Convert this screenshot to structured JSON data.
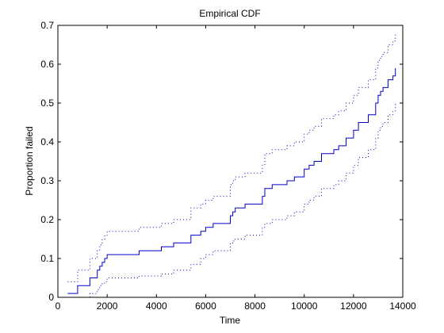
{
  "chart_data": {
    "type": "line",
    "title": "Empirical CDF",
    "xlabel": "Time",
    "ylabel": "Proportion failed",
    "xlim": [
      0,
      14000
    ],
    "ylim": [
      0,
      0.7
    ],
    "grid": false,
    "legend": "none",
    "x_ticks": [
      0,
      2000,
      4000,
      6000,
      8000,
      10000,
      12000,
      14000
    ],
    "x_tick_labels": [
      "0",
      "2000",
      "4000",
      "6000",
      "8000",
      "10000",
      "12000",
      "14000"
    ],
    "y_ticks": [
      0,
      0.1,
      0.2,
      0.3,
      0.4,
      0.5,
      0.6,
      0.7
    ],
    "y_tick_labels": [
      "0",
      "0.1",
      "0.2",
      "0.3",
      "0.4",
      "0.5",
      "0.6",
      "0.7"
    ],
    "colors": {
      "series": "#0000cc",
      "axes": "#000000",
      "background": "#ffffff"
    },
    "series": [
      {
        "role": "ecdf",
        "style": "solid-stairs",
        "x": [
          400,
          800,
          1300,
          1600,
          1700,
          1800,
          1900,
          2000,
          3300,
          4200,
          4700,
          5400,
          5800,
          6000,
          6300,
          7000,
          7100,
          7200,
          7600,
          8300,
          8400,
          8700,
          9300,
          9600,
          10000,
          10200,
          10400,
          10700,
          11200,
          11400,
          11700,
          12000,
          12200,
          12600,
          12900,
          13000,
          13100,
          13200,
          13400,
          13600,
          13700
        ],
        "y": [
          0.01,
          0.03,
          0.05,
          0.07,
          0.08,
          0.09,
          0.1,
          0.11,
          0.12,
          0.13,
          0.14,
          0.16,
          0.17,
          0.18,
          0.19,
          0.21,
          0.22,
          0.23,
          0.24,
          0.26,
          0.28,
          0.29,
          0.3,
          0.31,
          0.33,
          0.34,
          0.35,
          0.37,
          0.38,
          0.39,
          0.41,
          0.43,
          0.45,
          0.47,
          0.5,
          0.52,
          0.53,
          0.54,
          0.56,
          0.57,
          0.59
        ]
      },
      {
        "role": "upper-bound",
        "style": "dotted",
        "x": [
          400,
          800,
          1300,
          1600,
          1700,
          1800,
          1900,
          2000,
          3300,
          4200,
          4700,
          5400,
          5800,
          6000,
          6300,
          7000,
          7100,
          7200,
          7600,
          8300,
          8400,
          8700,
          9300,
          9600,
          10000,
          10200,
          10400,
          10700,
          11200,
          11400,
          11700,
          12000,
          12200,
          12600,
          12900,
          13000,
          13100,
          13200,
          13400,
          13600,
          13700
        ],
        "y": [
          0.04,
          0.07,
          0.1,
          0.12,
          0.135,
          0.15,
          0.16,
          0.17,
          0.18,
          0.19,
          0.2,
          0.23,
          0.24,
          0.25,
          0.26,
          0.29,
          0.3,
          0.31,
          0.32,
          0.34,
          0.37,
          0.38,
          0.39,
          0.4,
          0.42,
          0.43,
          0.44,
          0.46,
          0.47,
          0.48,
          0.5,
          0.52,
          0.54,
          0.56,
          0.59,
          0.61,
          0.62,
          0.63,
          0.65,
          0.66,
          0.68
        ]
      },
      {
        "role": "lower-bound",
        "style": "dotted",
        "x": [
          400,
          800,
          1300,
          1600,
          1700,
          1800,
          1900,
          2000,
          3300,
          4200,
          4700,
          5400,
          5800,
          6000,
          6300,
          7000,
          7100,
          7200,
          7600,
          8300,
          8400,
          8700,
          9300,
          9600,
          10000,
          10200,
          10400,
          10700,
          11200,
          11400,
          11700,
          12000,
          12200,
          12600,
          12900,
          13000,
          13100,
          13200,
          13400,
          13600,
          13700
        ],
        "y": [
          0.0,
          0.0,
          0.01,
          0.02,
          0.03,
          0.035,
          0.04,
          0.05,
          0.055,
          0.06,
          0.07,
          0.085,
          0.1,
          0.11,
          0.12,
          0.14,
          0.145,
          0.15,
          0.16,
          0.18,
          0.19,
          0.2,
          0.21,
          0.22,
          0.24,
          0.25,
          0.26,
          0.28,
          0.29,
          0.3,
          0.32,
          0.34,
          0.36,
          0.38,
          0.41,
          0.43,
          0.44,
          0.45,
          0.47,
          0.48,
          0.5
        ]
      }
    ]
  }
}
